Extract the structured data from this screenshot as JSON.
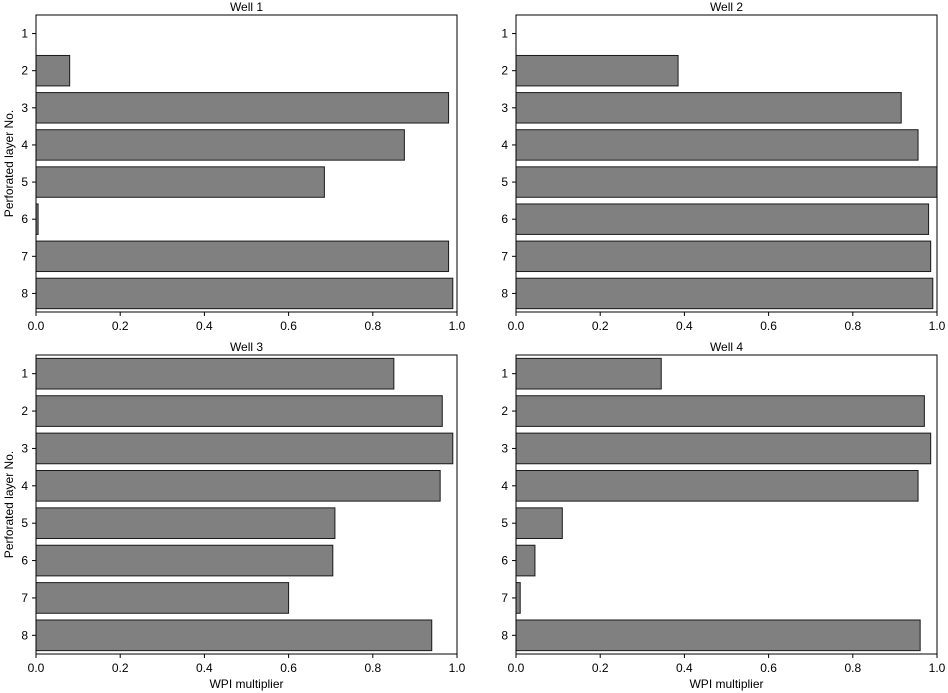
{
  "figure": {
    "ylabel": "Perforated layer No.",
    "xlabel": "WPI multiplier"
  },
  "chart_data": [
    {
      "type": "bar",
      "orientation": "horizontal",
      "title": "Well 1",
      "categories": [
        "1",
        "2",
        "3",
        "4",
        "5",
        "6",
        "7",
        "8"
      ],
      "values": [
        0.0,
        0.08,
        0.98,
        0.875,
        0.685,
        0.005,
        0.98,
        0.99
      ],
      "xlim": [
        0,
        1.0
      ],
      "xticks": [
        "0.0",
        "0.2",
        "0.4",
        "0.6",
        "0.8",
        "1.0"
      ],
      "ylabel": "Perforated layer No.",
      "xlabel": "",
      "bar_color": "#808080",
      "grid": false
    },
    {
      "type": "bar",
      "orientation": "horizontal",
      "title": "Well 2",
      "categories": [
        "1",
        "2",
        "3",
        "4",
        "5",
        "6",
        "7",
        "8"
      ],
      "values": [
        0.0,
        0.385,
        0.915,
        0.955,
        1.0,
        0.98,
        0.985,
        0.99
      ],
      "xlim": [
        0,
        1.0
      ],
      "xticks": [
        "0.0",
        "0.2",
        "0.4",
        "0.6",
        "0.8",
        "1.0"
      ],
      "ylabel": "",
      "xlabel": "",
      "bar_color": "#808080",
      "grid": false
    },
    {
      "type": "bar",
      "orientation": "horizontal",
      "title": "Well 3",
      "categories": [
        "1",
        "2",
        "3",
        "4",
        "5",
        "6",
        "7",
        "8"
      ],
      "values": [
        0.85,
        0.965,
        0.99,
        0.96,
        0.71,
        0.705,
        0.6,
        0.94
      ],
      "xlim": [
        0,
        1.0
      ],
      "xticks": [
        "0.0",
        "0.2",
        "0.4",
        "0.6",
        "0.8",
        "1.0"
      ],
      "ylabel": "Perforated layer No.",
      "xlabel": "WPI multiplier",
      "bar_color": "#808080",
      "grid": false
    },
    {
      "type": "bar",
      "orientation": "horizontal",
      "title": "Well 4",
      "categories": [
        "1",
        "2",
        "3",
        "4",
        "5",
        "6",
        "7",
        "8"
      ],
      "values": [
        0.345,
        0.97,
        0.985,
        0.955,
        0.11,
        0.045,
        0.01,
        0.96
      ],
      "xlim": [
        0,
        1.0
      ],
      "xticks": [
        "0.0",
        "0.2",
        "0.4",
        "0.6",
        "0.8",
        "1.0"
      ],
      "ylabel": "",
      "xlabel": "WPI multiplier",
      "bar_color": "#808080",
      "grid": false
    }
  ]
}
